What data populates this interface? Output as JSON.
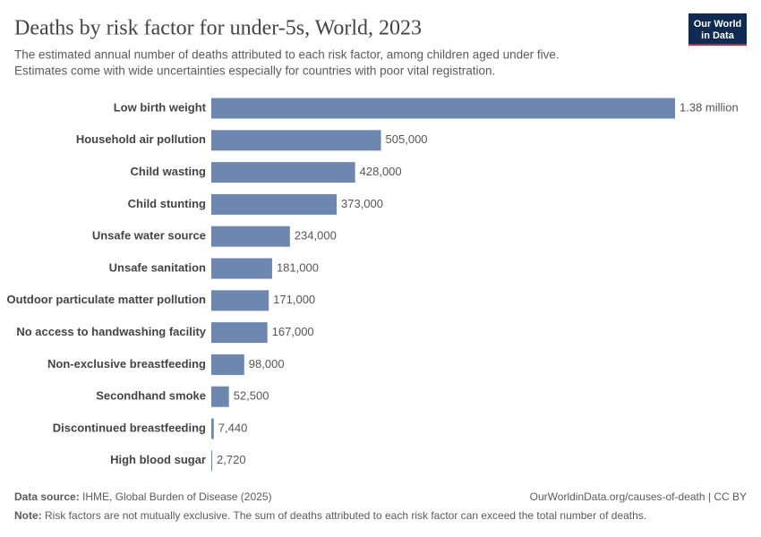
{
  "chart_data": {
    "type": "bar",
    "orientation": "horizontal",
    "title": "Deaths by risk factor for under-5s, World, 2023",
    "subtitle": [
      "The estimated annual number of deaths attributed to each risk factor, among children aged under five.",
      "Estimates come with wide uncertainties especially for countries with poor vital registration."
    ],
    "categories": [
      "Low birth weight",
      "Household air pollution",
      "Child wasting",
      "Child stunting",
      "Unsafe water source",
      "Unsafe sanitation",
      "Outdoor particulate matter pollution",
      "No access to handwashing facility",
      "Non-exclusive breastfeeding",
      "Secondhand smoke",
      "Discontinued breastfeeding",
      "High blood sugar"
    ],
    "values": [
      1380000,
      505000,
      428000,
      373000,
      234000,
      181000,
      171000,
      167000,
      98000,
      52500,
      7440,
      2720
    ],
    "value_labels": [
      "1.38 million",
      "505,000",
      "428,000",
      "373,000",
      "234,000",
      "181,000",
      "171,000",
      "167,000",
      "98,000",
      "52,500",
      "7,440",
      "2,720"
    ],
    "color": "#6d87b1",
    "logo": [
      "Our World",
      "in Data"
    ],
    "source_label": "Data source:",
    "source": "IHME, Global Burden of Disease (2025)",
    "url": "OurWorldinData.org/causes-of-death | CC BY",
    "note_label": "Note:",
    "note": "Risk factors are not mutually exclusive. The sum of deaths attributed to each risk factor can exceed the total number of deaths."
  }
}
